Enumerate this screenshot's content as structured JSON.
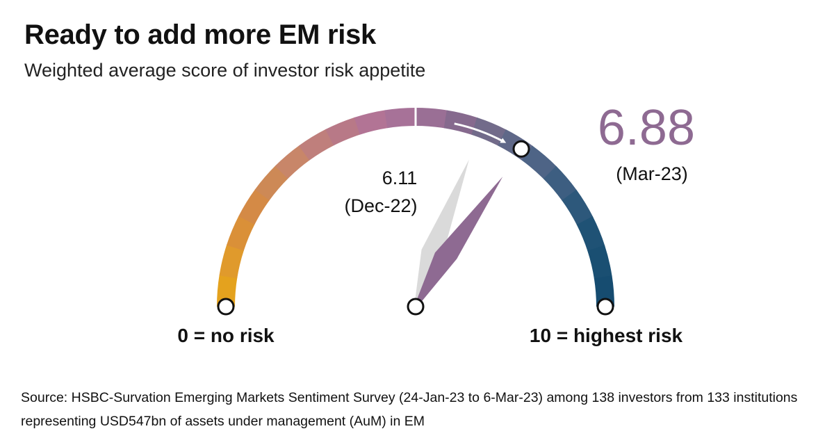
{
  "title": "Ready to add more EM risk",
  "subtitle": "Weighted average score of investor risk appetite",
  "chart_data": {
    "type": "gauge",
    "scale": {
      "min": 0,
      "max": 10
    },
    "min_label": "0 = no risk",
    "max_label": "10 = highest risk",
    "segment_colors": [
      "#E4A21E",
      "#E09A2C",
      "#DA9038",
      "#D48A46",
      "#CD8956",
      "#C88669",
      "#BF7F7C",
      "#B87987",
      "#B27495",
      "#A77298",
      "#9A6F95",
      "#866A8E",
      "#726B8A",
      "#5F6888",
      "#4E6486",
      "#3D5E81",
      "#2D587B",
      "#1F5275",
      "#1A4F72",
      "#164C70"
    ],
    "readings": [
      {
        "period": "(Dec-22)",
        "value": 6.11,
        "value_label": "6.11",
        "color": "#DADADA",
        "role": "previous"
      },
      {
        "period": "(Mar-23)",
        "value": 6.88,
        "value_label": "6.88",
        "color": "#8E6A92",
        "role": "current"
      }
    ]
  },
  "footer": {
    "source": "Source: HSBC-Survation Emerging Markets Sentiment Survey (24-Jan-23 to 6-Mar-23) among 138 investors from 133 institutions representing USD547bn of assets under management (AuM) in EM"
  }
}
